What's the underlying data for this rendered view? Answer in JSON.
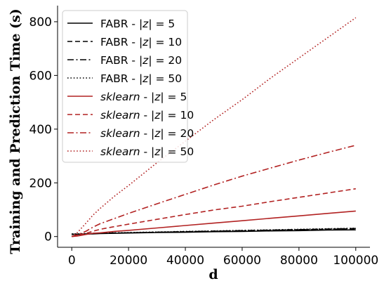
{
  "chart_data": {
    "type": "line",
    "xlabel": "d",
    "ylabel": "Training and Prediction Time (s)",
    "xlim": [
      -5000,
      105000
    ],
    "ylim": [
      -40,
      860
    ],
    "xticks": [
      0,
      20000,
      40000,
      60000,
      80000,
      100000
    ],
    "yticks": [
      0,
      200,
      400,
      600,
      800
    ],
    "grid": false,
    "legend_position": "top-left",
    "x": [
      0,
      2000,
      5000,
      7500,
      10000,
      15000,
      20000,
      30000,
      40000,
      50000,
      60000,
      70000,
      80000,
      90000,
      100000
    ],
    "series": [
      {
        "name": "FABR - |z| = 5",
        "name_parts": [
          "FABR - |",
          "z",
          "| = 5"
        ],
        "name_italic": [
          false,
          true,
          false
        ],
        "color": "#000000",
        "dash": "solid",
        "values": [
          8,
          8,
          9,
          10,
          11,
          12,
          13,
          15,
          16,
          18,
          19,
          21,
          22,
          24,
          25
        ]
      },
      {
        "name": "FABR - |z| = 10",
        "name_parts": [
          "FABR - |",
          "z",
          "| = 10"
        ],
        "name_italic": [
          false,
          true,
          false
        ],
        "color": "#000000",
        "dash": "dashed",
        "values": [
          8,
          9,
          10,
          11,
          12,
          13,
          14,
          16,
          18,
          20,
          21,
          23,
          25,
          27,
          29
        ]
      },
      {
        "name": "FABR - |z| = 20",
        "name_parts": [
          "FABR - |",
          "z",
          "| = 20"
        ],
        "name_italic": [
          false,
          true,
          false
        ],
        "color": "#000000",
        "dash": "dashdot",
        "values": [
          9,
          9,
          10,
          11,
          12,
          13,
          14,
          16,
          18,
          20,
          22,
          24,
          26,
          28,
          30
        ]
      },
      {
        "name": "FABR - |z| = 50",
        "name_parts": [
          "FABR - |",
          "z",
          "| = 50"
        ],
        "name_italic": [
          false,
          true,
          false
        ],
        "color": "#000000",
        "dash": "dotted",
        "values": [
          10,
          10,
          11,
          12,
          13,
          14,
          15,
          17,
          19,
          21,
          23,
          25,
          27,
          29,
          31
        ]
      },
      {
        "name": "sklearn - |z| = 5",
        "name_parts": [
          "sklearn",
          " - |",
          "z",
          "| = 5"
        ],
        "name_italic": [
          true,
          false,
          true,
          false
        ],
        "color": "#b22222",
        "dash": "solid",
        "values": [
          0,
          2,
          8,
          12,
          14,
          19,
          23,
          32,
          41,
          50,
          59,
          68,
          77,
          86,
          95
        ]
      },
      {
        "name": "sklearn - |z| = 10",
        "name_parts": [
          "sklearn",
          " - |",
          "z",
          "| = 10"
        ],
        "name_italic": [
          true,
          false,
          true,
          false
        ],
        "color": "#b22222",
        "dash": "dashed",
        "values": [
          0,
          4,
          12,
          20,
          27,
          37,
          46,
          64,
          82,
          99,
          113,
          130,
          146,
          162,
          178
        ]
      },
      {
        "name": "sklearn - |z| = 20",
        "name_parts": [
          "sklearn",
          " - |",
          "z",
          "| = 20"
        ],
        "name_italic": [
          true,
          false,
          true,
          false
        ],
        "color": "#b22222",
        "dash": "dashdot",
        "values": [
          0,
          6,
          20,
          35,
          48,
          67,
          86,
          122,
          157,
          192,
          225,
          255,
          285,
          313,
          340
        ]
      },
      {
        "name": "sklearn - |z| = 50",
        "name_parts": [
          "sklearn",
          " - |",
          "z",
          "| = 50"
        ],
        "name_italic": [
          true,
          false,
          true,
          false
        ],
        "color": "#b22222",
        "dash": "dotted",
        "values": [
          0,
          15,
          50,
          80,
          105,
          150,
          190,
          275,
          355,
          435,
          510,
          590,
          665,
          740,
          815
        ]
      }
    ]
  }
}
